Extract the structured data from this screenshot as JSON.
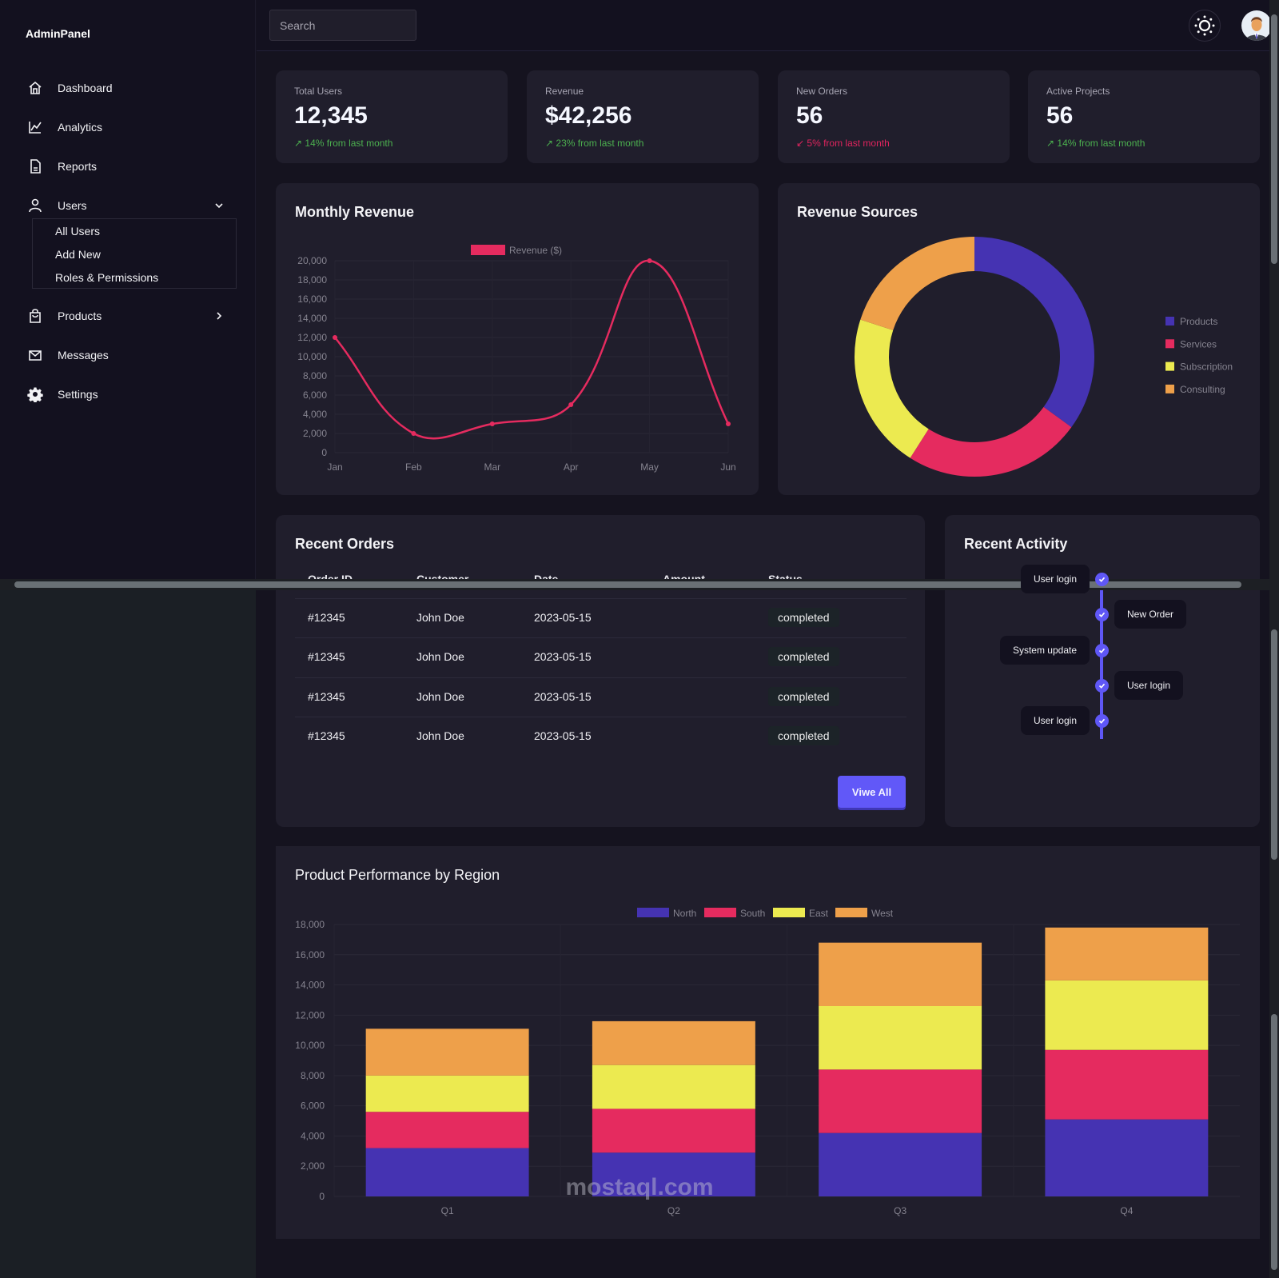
{
  "brand": "AdminPanel",
  "search": {
    "placeholder": "Search"
  },
  "sidebar": {
    "items": [
      {
        "label": "Dashboard",
        "icon": "home-icon"
      },
      {
        "label": "Analytics",
        "icon": "chart-line-icon"
      },
      {
        "label": "Reports",
        "icon": "document-icon"
      },
      {
        "label": "Users",
        "icon": "user-icon",
        "expanded": true
      },
      {
        "label": "Products",
        "icon": "shopping-bag-icon",
        "expanded": false
      },
      {
        "label": "Messages",
        "icon": "mail-icon"
      },
      {
        "label": "Settings",
        "icon": "gear-icon"
      }
    ],
    "users_sub": [
      "All Users",
      "Add New",
      "Roles & Permissions"
    ]
  },
  "stats": [
    {
      "label": "Total Users",
      "value": "12,345",
      "change": "↗ 14% from last month",
      "trend": "up"
    },
    {
      "label": "Revenue",
      "value": "$42,256",
      "change": "↗ 23% from last month",
      "trend": "up"
    },
    {
      "label": "New Orders",
      "value": "56",
      "change": "↙ 5% from last month",
      "trend": "down"
    },
    {
      "label": "Active Projects",
      "value": "56",
      "change": "↗ 14% from last month",
      "trend": "up"
    }
  ],
  "colors": {
    "up": "#4cb04f",
    "down": "#e0245e",
    "accent": "#6158f8"
  },
  "orders": {
    "title": "Recent Orders",
    "columns": [
      "Order ID",
      "Customer",
      "Date",
      "Amount",
      "Status"
    ],
    "rows": [
      {
        "id": "#12345",
        "customer": "John Doe",
        "date": "2023-05-15",
        "status": "completed"
      },
      {
        "id": "#12345",
        "customer": "John Doe",
        "date": "2023-05-15",
        "status": "completed"
      },
      {
        "id": "#12345",
        "customer": "John Doe",
        "date": "2023-05-15",
        "status": "completed"
      },
      {
        "id": "#12345",
        "customer": "John Doe",
        "date": "2023-05-15",
        "status": "completed"
      }
    ],
    "view_all": "Viwe All"
  },
  "activity": {
    "title": "Recent Activity",
    "items": [
      "User login",
      "New Order",
      "System update",
      "User login",
      "User login"
    ]
  },
  "watermark": "mostaql.com",
  "chart_data": [
    {
      "type": "line",
      "title": "Monthly Revenue",
      "categories": [
        "Jan",
        "Feb",
        "Mar",
        "Apr",
        "May",
        "Jun"
      ],
      "series": [
        {
          "name": "Revenue ($)",
          "values": [
            12000,
            2000,
            3000,
            5000,
            20000,
            3000
          ],
          "color": "#e52b5f"
        }
      ],
      "ylim": [
        0,
        20000
      ],
      "yticks": [
        "0",
        "2,000",
        "4,000",
        "6,000",
        "8,000",
        "10,000",
        "12,000",
        "14,000",
        "16,000",
        "18,000",
        "20,000"
      ],
      "grid": true,
      "legend": "top"
    },
    {
      "type": "pie",
      "variant": "doughnut",
      "title": "Revenue Sources",
      "categories": [
        "Products",
        "Services",
        "Subscription",
        "Consulting"
      ],
      "values": [
        35,
        24,
        21,
        20
      ],
      "colors": [
        "#4533b2",
        "#e52b5f",
        "#ecea50",
        "#eea04a"
      ],
      "legend": "right"
    },
    {
      "type": "bar",
      "stacked": true,
      "title": "Product Performance by Region",
      "categories": [
        "Q1",
        "Q2",
        "Q3",
        "Q4"
      ],
      "series": [
        {
          "name": "North",
          "values": [
            3200,
            2900,
            4200,
            5100
          ],
          "color": "#4533b2"
        },
        {
          "name": "South",
          "values": [
            2400,
            2900,
            4200,
            4600
          ],
          "color": "#e52b5f"
        },
        {
          "name": "East",
          "values": [
            2400,
            2900,
            4200,
            4600
          ],
          "color": "#ecea50"
        },
        {
          "name": "West",
          "values": [
            3100,
            2900,
            4200,
            3500
          ],
          "color": "#eea04a"
        }
      ],
      "ylim": [
        0,
        18000
      ],
      "yticks": [
        "0",
        "2,000",
        "4,000",
        "6,000",
        "8,000",
        "10,000",
        "12,000",
        "14,000",
        "16,000",
        "18,000"
      ],
      "grid": true,
      "legend": "top"
    }
  ]
}
